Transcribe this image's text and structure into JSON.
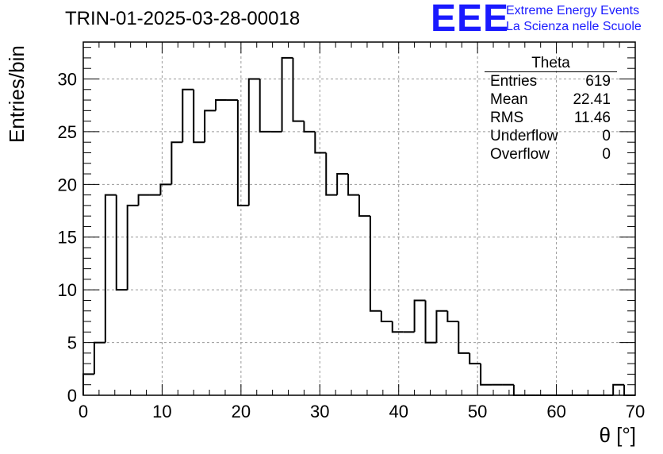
{
  "title": "TRIN-01-2025-03-28-00018",
  "logo": {
    "mark": "EEE",
    "line1": "Extreme Energy Events",
    "line2": "La Scienza nelle Scuole",
    "color": "#1a1aff"
  },
  "stats": {
    "name": "Theta",
    "rows": [
      {
        "label": "Entries",
        "value": "619"
      },
      {
        "label": "Mean",
        "value": "22.41"
      },
      {
        "label": "RMS",
        "value": "11.46"
      },
      {
        "label": "Underflow",
        "value": "0"
      },
      {
        "label": "Overflow",
        "value": "0"
      }
    ]
  },
  "chart_data": {
    "type": "bar",
    "title": "TRIN-01-2025-03-28-00018",
    "xlabel": "θ [°]",
    "ylabel": "Entries/bin",
    "xlim": [
      0,
      70
    ],
    "ylim": [
      0,
      33.5
    ],
    "xticks": [
      0,
      10,
      20,
      30,
      40,
      50,
      60,
      70
    ],
    "yticks": [
      0,
      5,
      10,
      15,
      20,
      25,
      30
    ],
    "grid": true,
    "bin_width": 1.4,
    "bin_start": 0,
    "values": [
      2,
      5,
      19,
      10,
      18,
      19,
      19,
      20,
      24,
      29,
      24,
      27,
      28,
      28,
      18,
      30,
      25,
      25,
      32,
      26,
      25,
      23,
      19,
      21,
      19,
      17,
      8,
      7,
      6,
      6,
      9,
      5,
      8,
      7,
      4,
      3,
      1,
      1,
      1,
      0,
      0,
      0,
      0,
      0,
      0,
      0,
      0,
      0,
      1,
      0
    ],
    "line_color": "#000000"
  }
}
